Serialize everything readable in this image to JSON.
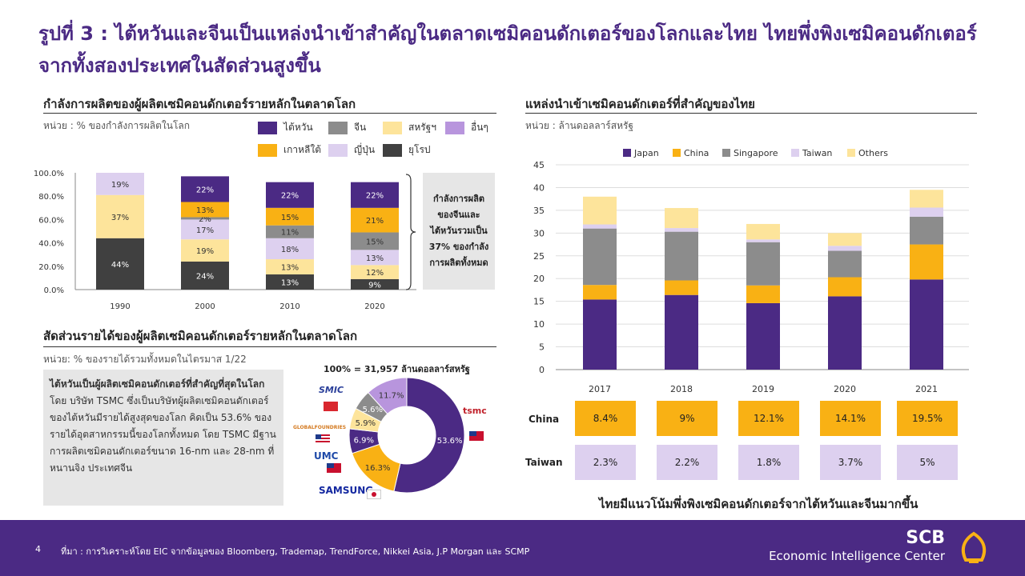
{
  "title": "รูปที่ 3 : ไต้หวันและจีนเป็นแหล่งนำเข้าสำคัญในตลาดเซมิคอนดักเตอร์ของโลกและไทย ไทยพึ่งพิงเซมิคอนดักเตอร์จากทั้งสองประเทศในสัดส่วนสูงขึ้น",
  "colors": {
    "purple": "#4b2a84",
    "orange": "#f9b114",
    "gray": "#8c8c8c",
    "yellow": "#fde49b",
    "lavender": "#b895dd",
    "lightlav": "#ddd0ef",
    "dark": "#404040"
  },
  "capacity": {
    "title": "กำลังการผลิตของผู้ผลิตเซมิคอนดักเตอร์รายหลักในตลาดโลก",
    "unit": "หน่วย : % ของกำลังการผลิตในโลก",
    "legend": [
      {
        "label": "ไต้หวัน",
        "color": "#4b2a84"
      },
      {
        "label": "จีน",
        "color": "#8c8c8c"
      },
      {
        "label": "สหรัฐฯ",
        "color": "#fde49b"
      },
      {
        "label": "อื่นๆ",
        "color": "#b895dd"
      },
      {
        "label": "เกาหลีใต้",
        "color": "#f9b114"
      },
      {
        "label": "ญี่ปุ่น",
        "color": "#ddd0ef"
      },
      {
        "label": "ยุโรป",
        "color": "#404040"
      }
    ],
    "note": "กำลังการผลิตของจีนและไต้หวันรวมเป็น 37% ของกำลังการผลิตทั้งหมด"
  },
  "revenue": {
    "title": "สัดส่วนรายได้ของผู้ผลิตเซมิคอนดักเตอร์รายหลักในตลาดโลก",
    "unit": "หน่วย: % ของรายได้รวมทั้งหมดในไตรมาส 1/22",
    "note_bold": "ไต้หวันเป็นผู้ผลิตเซมิคอนดักเตอร์ที่สำคัญที่สุดในโลก",
    "note_rest": " โดย บริษัท TSMC ซึ่งเป็นบริษัทผู้ผลิตเซมิคอนดักเตอร์ของไต้หวันมีรายได้สูงสุดของโลก คิดเป็น 53.6% ของรายได้อุตสาหกรรมนี้ของโลกทั้งหมด โดย TSMC มีฐานการผลิตเซมิคอนดักเตอร์ขนาด 16-nm และ 28-nm ที่หนานจิง ประเทศจีน",
    "total": "100% = 31,957 ล้านดอลลาร์สหรัฐ",
    "logos": {
      "smic": "SMIC",
      "tsmc": "tsmc",
      "gf": "GLOBALFOUNDRIES",
      "umc": "UMC",
      "samsung": "SAMSUNG"
    }
  },
  "imports": {
    "title": "แหล่งนำเข้าเซมิคอนดักเตอร์ที่สำคัญของไทย",
    "unit": "หน่วย : ล้านดอลลาร์สหรัฐ",
    "row_labels": {
      "china": "China",
      "taiwan": "Taiwan"
    },
    "china_share": [
      "8.4%",
      "9%",
      "12.1%",
      "14.1%",
      "19.5%"
    ],
    "taiwan_share": [
      "2.3%",
      "2.2%",
      "1.8%",
      "3.7%",
      "5%"
    ],
    "footnote": "ไทยมีแนวโน้มพึ่งพิงเซมิคอนดักเตอร์จากไต้หวันและจีนมากขึ้น"
  },
  "footer": {
    "page": "4",
    "source": "ที่มา : การวิเคราะห์โดย EIC จากข้อมูลของ Bloomberg, Trademap, TrendForce, Nikkei Asia, J.P Morgan และ SCMP",
    "brand1": "SCB",
    "brand2": "Economic Intelligence Center"
  },
  "chart_data": [
    {
      "type": "bar",
      "stacked": true,
      "categories": [
        "1990",
        "2000",
        "2010",
        "2020"
      ],
      "ylim": [
        0,
        100
      ],
      "yticks": [
        "0.0%",
        "20.0%",
        "40.0%",
        "60.0%",
        "80.0%",
        "100.0%"
      ],
      "series": [
        {
          "name": "ยุโรป",
          "color": "#404040",
          "values": [
            44,
            24,
            13,
            9
          ],
          "labels": [
            "44%",
            "24%",
            "13%",
            "9%"
          ]
        },
        {
          "name": "ญี่ปุ่น",
          "color": "#ddd0ef",
          "values": [
            0,
            0,
            0,
            0
          ],
          "labels": [
            "",
            "",
            "",
            ""
          ]
        },
        {
          "name": "สหรัฐฯ",
          "color": "#fde49b",
          "values": [
            37,
            19,
            13,
            12
          ],
          "labels": [
            "37%",
            "19%",
            "13%",
            "12%"
          ]
        },
        {
          "name": "อื่นๆ",
          "color": "#b895dd",
          "values": [
            0,
            0,
            0,
            0
          ],
          "labels": [
            "",
            "",
            "",
            ""
          ]
        },
        {
          "name": "ญี่ปุ่น",
          "color": "#ddd0ef",
          "values": [
            19,
            17,
            18,
            13
          ],
          "labels": [
            "19%",
            "17%",
            "18%",
            "13%"
          ]
        },
        {
          "name": "จีน",
          "color": "#8c8c8c",
          "values": [
            0,
            2,
            11,
            15
          ],
          "labels": [
            "",
            "2%",
            "11%",
            "15%"
          ]
        },
        {
          "name": "เกาหลีใต้",
          "color": "#f9b114",
          "values": [
            0,
            13,
            15,
            21
          ],
          "labels": [
            "",
            "13%",
            "15%",
            "21%"
          ]
        },
        {
          "name": "ไต้หวัน",
          "color": "#4b2a84",
          "values": [
            0,
            22,
            22,
            22
          ],
          "labels": [
            "",
            "22%",
            "22%",
            "22%"
          ]
        }
      ]
    },
    {
      "type": "pie",
      "donut": true,
      "slices": [
        {
          "label": "53.6%",
          "value": 53.6,
          "color": "#4b2a84"
        },
        {
          "label": "16.3%",
          "value": 16.3,
          "color": "#f9b114"
        },
        {
          "label": "6.9%",
          "value": 6.9,
          "color": "#4b2a84"
        },
        {
          "label": "5.9%",
          "value": 5.9,
          "color": "#fde49b"
        },
        {
          "label": "5.6%",
          "value": 5.6,
          "color": "#8c8c8c"
        },
        {
          "label": "11.7%",
          "value": 11.7,
          "color": "#b895dd"
        }
      ]
    },
    {
      "type": "bar",
      "stacked": true,
      "categories": [
        "2017",
        "2018",
        "2019",
        "2020",
        "2021"
      ],
      "ylim": [
        0,
        45
      ],
      "yticks": [
        0,
        5,
        10,
        15,
        20,
        25,
        30,
        35,
        40,
        45
      ],
      "legend_position": "top",
      "series": [
        {
          "name": "Japan",
          "color": "#4b2a84",
          "values": [
            15.4,
            16.4,
            14.6,
            16.1,
            19.8
          ]
        },
        {
          "name": "China",
          "color": "#f9b114",
          "values": [
            3.2,
            3.2,
            3.9,
            4.2,
            7.7
          ]
        },
        {
          "name": "Singapore",
          "color": "#8c8c8c",
          "values": [
            12.4,
            10.7,
            9.5,
            5.8,
            6.1
          ]
        },
        {
          "name": "Taiwan",
          "color": "#ddd0ef",
          "values": [
            0.9,
            0.8,
            0.6,
            1.1,
            2.0
          ]
        },
        {
          "name": "Others",
          "color": "#fde49b",
          "values": [
            6.1,
            4.4,
            3.4,
            2.8,
            3.9
          ]
        }
      ]
    }
  ]
}
